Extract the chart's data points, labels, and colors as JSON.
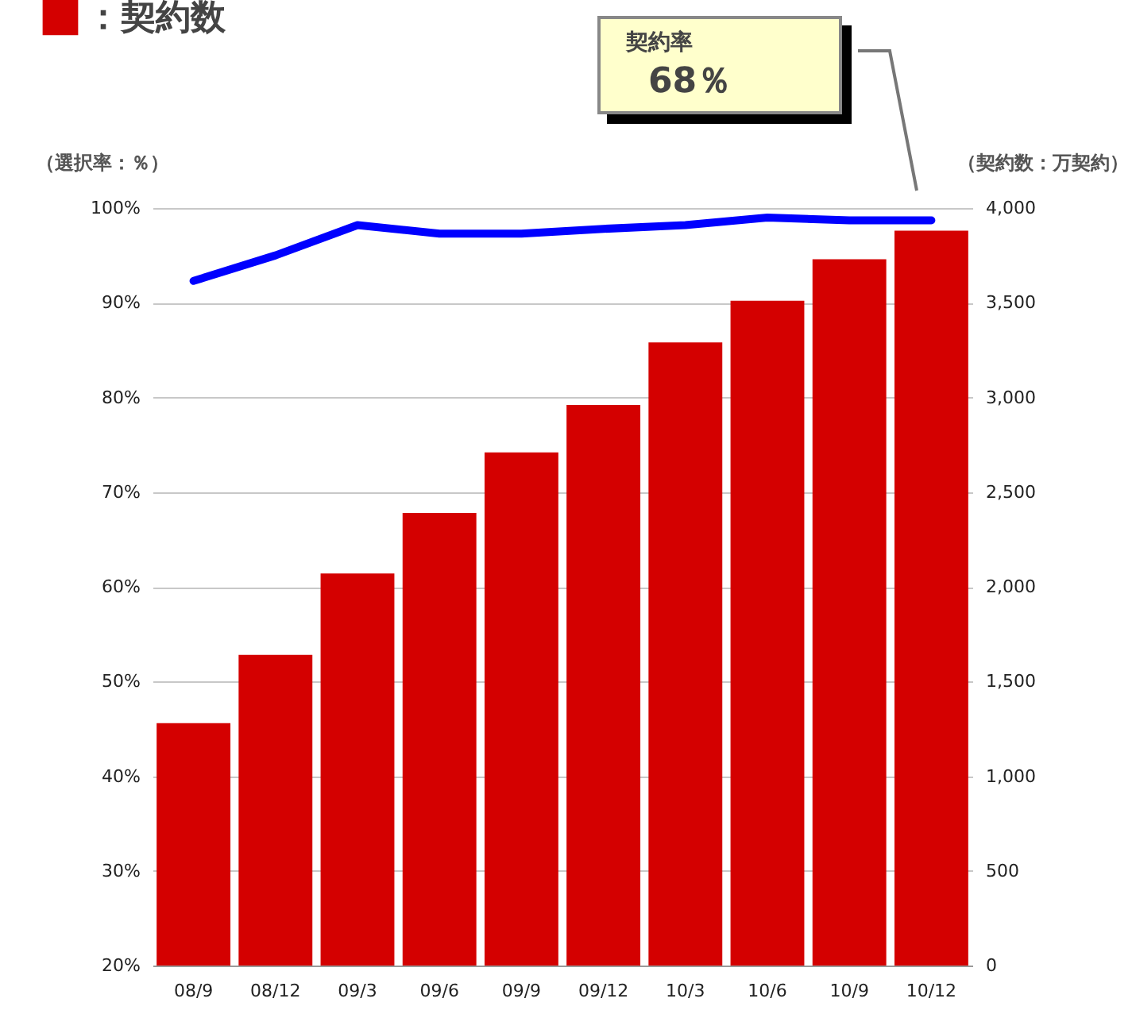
{
  "chart_data": {
    "type": "bar",
    "categories": [
      "08/9",
      "08/12",
      "09/3",
      "09/6",
      "09/9",
      "09/12",
      "10/3",
      "10/6",
      "10/9",
      "10/12"
    ],
    "series": [
      {
        "name": "：契約数",
        "type": "bar",
        "axis": "y2",
        "color": "#d40000",
        "values": [
          1280,
          1640,
          2070,
          2390,
          2710,
          2960,
          3290,
          3510,
          3730,
          3880
        ]
      },
      {
        "type": "line",
        "axis": "y",
        "color": "#0000ff",
        "values": [
          92.3,
          95,
          98.2,
          97.3,
          97.3,
          97.8,
          98.2,
          99,
          98.7,
          98.7
        ]
      }
    ],
    "ylabel": "（選択率：％）",
    "y2label": "（契約数：万契約）",
    "ylim": [
      20,
      100
    ],
    "yticks": [
      {
        "value": 20,
        "label": "20%"
      },
      {
        "value": 30,
        "label": "30%"
      },
      {
        "value": 40,
        "label": "40%"
      },
      {
        "value": 50,
        "label": "50%"
      },
      {
        "value": 60,
        "label": "60%"
      },
      {
        "value": 70,
        "label": "70%"
      },
      {
        "value": 80,
        "label": "80%"
      },
      {
        "value": 90,
        "label": "90%"
      },
      {
        "value": 100,
        "label": "100%"
      }
    ],
    "y2lim": [
      0,
      4000
    ],
    "y2ticks": [
      0,
      500,
      {
        "value": 1000,
        "label": "1,000"
      },
      {
        "value": 1500,
        "label": "1,500"
      },
      {
        "value": 2000,
        "label": "2,000"
      },
      {
        "value": 2500,
        "label": "2,500"
      },
      {
        "value": 3000,
        "label": "3,000"
      },
      {
        "value": 3500,
        "label": "3,500"
      },
      {
        "value": 4000,
        "label": "4,000"
      }
    ],
    "annotations": [
      "契約率",
      "68％"
    ],
    "grid": "y",
    "legend": "top left"
  }
}
